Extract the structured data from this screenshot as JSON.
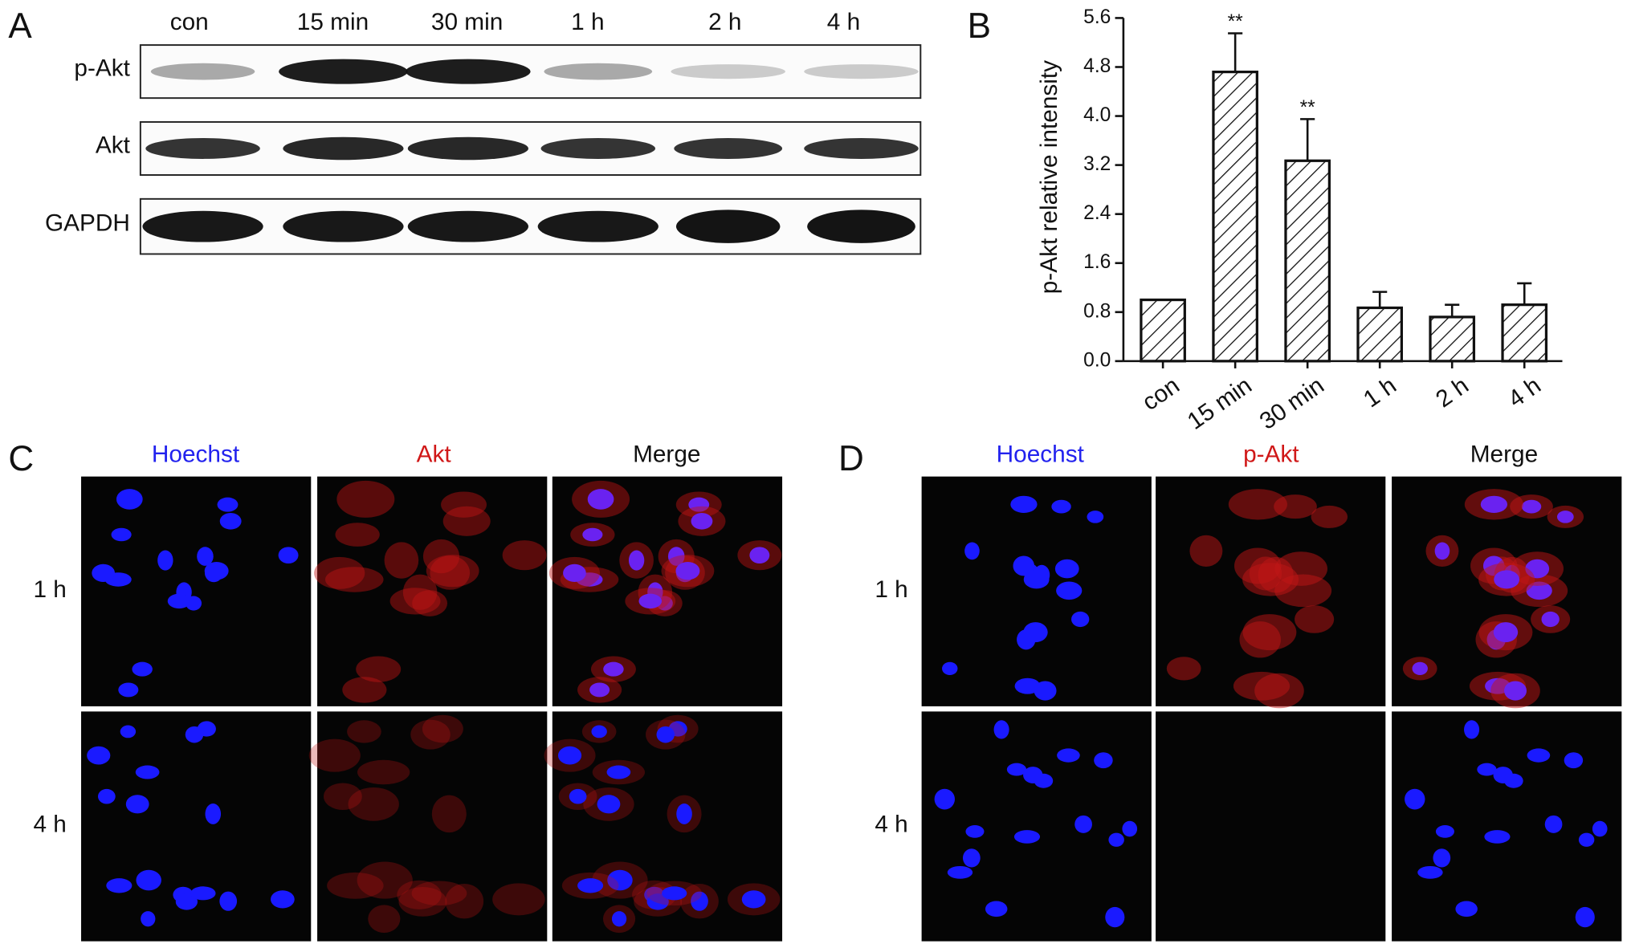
{
  "panel_a": {
    "letter": "A",
    "lanes": [
      "con",
      "15 min",
      "30 min",
      "1 h",
      "2 h",
      "4 h"
    ],
    "rows": [
      "p-Akt",
      "Akt",
      "GAPDH"
    ]
  },
  "chart_data": {
    "type": "bar",
    "letter": "B",
    "y_label": "p-Akt relative intensity",
    "categories": [
      "con",
      "15 min",
      "30 min",
      "1 h",
      "2 h",
      "4 h"
    ],
    "values": [
      1.0,
      4.72,
      3.27,
      0.87,
      0.72,
      0.92
    ],
    "errors": [
      0,
      0.63,
      0.68,
      0.26,
      0.2,
      0.35
    ],
    "significance": [
      null,
      "**",
      "**",
      null,
      null,
      null
    ],
    "color": "#ffffff",
    "hatch": true,
    "ylim": [
      0,
      5.6
    ],
    "yticks": [
      {
        "value": 0,
        "label": "0.0"
      },
      0.8,
      1.6,
      2.4,
      3.2,
      {
        "value": 4,
        "label": "4.0"
      },
      4.8,
      5.6
    ]
  },
  "panel_c": {
    "letter": "C",
    "columns": [
      "Hoechst",
      "Akt",
      "Merge"
    ],
    "rows": [
      "1 h",
      "4 h"
    ]
  },
  "panel_d": {
    "letter": "D",
    "columns": [
      "Hoechst",
      "p-Akt",
      "Merge"
    ],
    "rows": [
      "1 h",
      "4 h"
    ]
  }
}
